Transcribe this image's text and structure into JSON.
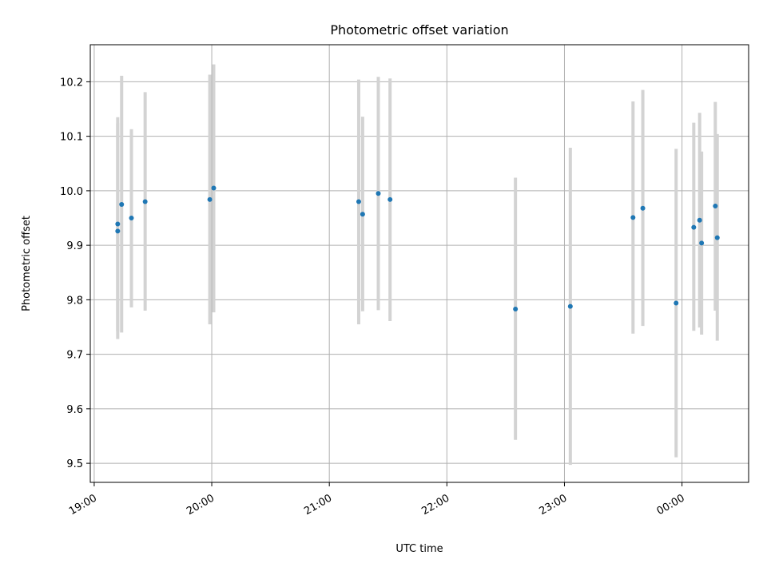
{
  "chart_data": {
    "type": "scatter",
    "title": "Photometric offset variation",
    "xlabel": "UTC time",
    "ylabel": "Photometric offset",
    "x_unit": "UTC hour",
    "xlim": [
      "18:58",
      "00:34"
    ],
    "ylim": [
      9.465,
      10.268
    ],
    "grid": true,
    "x_ticks": [
      {
        "label": "19:00",
        "value": "19:00"
      },
      {
        "label": "20:00",
        "value": "20:00"
      },
      {
        "label": "21:00",
        "value": "21:00"
      },
      {
        "label": "22:00",
        "value": "22:00"
      },
      {
        "label": "23:00",
        "value": "23:00"
      },
      {
        "label": "00:00",
        "value": "00:00"
      }
    ],
    "y_ticks": [
      {
        "label": "9.5",
        "value": 9.5
      },
      {
        "label": "9.6",
        "value": 9.6
      },
      {
        "label": "9.7",
        "value": 9.7
      },
      {
        "label": "9.8",
        "value": 9.8
      },
      {
        "label": "9.9",
        "value": 9.9
      },
      {
        "label": "10.0",
        "value": 10.0
      },
      {
        "label": "10.1",
        "value": 10.1
      },
      {
        "label": "10.2",
        "value": 10.2
      }
    ],
    "colors": {
      "point": "#1f77b4",
      "errorbar": "#d3d3d3",
      "grid": "#b0b0b0"
    },
    "points": [
      {
        "t": "19:12",
        "y": 9.939,
        "lo": 9.742,
        "hi": 10.135
      },
      {
        "t": "19:12",
        "y": 9.926,
        "lo": 9.728,
        "hi": 10.124
      },
      {
        "t": "19:14",
        "y": 9.975,
        "lo": 9.74,
        "hi": 10.211
      },
      {
        "t": "19:19",
        "y": 9.95,
        "lo": 9.786,
        "hi": 10.113
      },
      {
        "t": "19:26",
        "y": 9.98,
        "lo": 9.78,
        "hi": 10.181
      },
      {
        "t": "19:59",
        "y": 9.984,
        "lo": 9.755,
        "hi": 10.213
      },
      {
        "t": "20:01",
        "y": 10.005,
        "lo": 9.777,
        "hi": 10.232
      },
      {
        "t": "21:15",
        "y": 9.98,
        "lo": 9.755,
        "hi": 10.204
      },
      {
        "t": "21:17",
        "y": 9.957,
        "lo": 9.779,
        "hi": 10.136
      },
      {
        "t": "21:25",
        "y": 9.995,
        "lo": 9.781,
        "hi": 10.209
      },
      {
        "t": "21:31",
        "y": 9.984,
        "lo": 9.761,
        "hi": 10.206
      },
      {
        "t": "22:35",
        "y": 9.783,
        "lo": 9.543,
        "hi": 10.024
      },
      {
        "t": "23:03",
        "y": 9.788,
        "lo": 9.497,
        "hi": 10.079
      },
      {
        "t": "23:35",
        "y": 9.951,
        "lo": 9.738,
        "hi": 10.164
      },
      {
        "t": "23:40",
        "y": 9.968,
        "lo": 9.752,
        "hi": 10.185
      },
      {
        "t": "23:57",
        "y": 9.794,
        "lo": 9.511,
        "hi": 10.077
      },
      {
        "t": "00:06",
        "y": 9.933,
        "lo": 9.743,
        "hi": 10.125
      },
      {
        "t": "00:09",
        "y": 9.946,
        "lo": 9.749,
        "hi": 10.143
      },
      {
        "t": "00:10",
        "y": 9.904,
        "lo": 9.736,
        "hi": 10.072
      },
      {
        "t": "00:17",
        "y": 9.972,
        "lo": 9.78,
        "hi": 10.163
      },
      {
        "t": "00:18",
        "y": 9.914,
        "lo": 9.725,
        "hi": 10.104
      }
    ]
  }
}
